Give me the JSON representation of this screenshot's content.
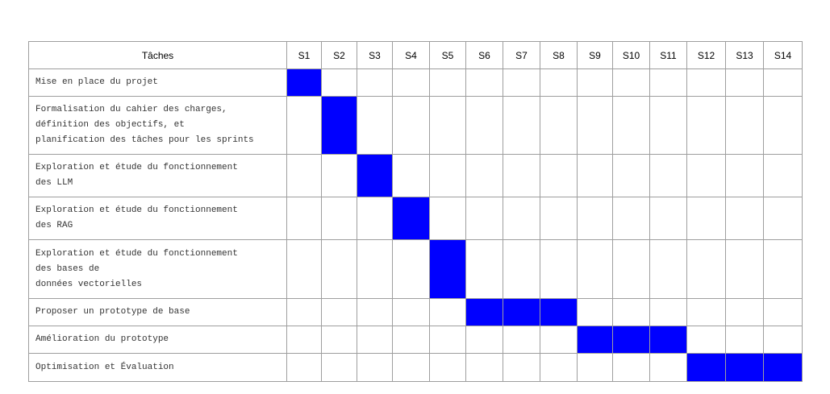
{
  "chart_data": {
    "type": "table",
    "header": {
      "task_column": "Tâches",
      "weeks": [
        "S1",
        "S2",
        "S3",
        "S4",
        "S5",
        "S6",
        "S7",
        "S8",
        "S9",
        "S10",
        "S11",
        "S12",
        "S13",
        "S14"
      ]
    },
    "tasks": [
      {
        "lines": [
          "Mise en place du projet"
        ],
        "weeks": [
          1
        ]
      },
      {
        "lines": [
          "Formalisation du cahier des charges,",
          "définition des objectifs, et",
          "planification des tâches pour les sprints"
        ],
        "weeks": [
          2
        ]
      },
      {
        "lines": [
          "Exploration et étude du fonctionnement",
          "des LLM"
        ],
        "weeks": [
          3
        ]
      },
      {
        "lines": [
          "Exploration et étude du fonctionnement",
          "des RAG"
        ],
        "weeks": [
          4
        ]
      },
      {
        "lines": [
          "Exploration et étude du fonctionnement",
          "des bases de",
          "données vectorielles"
        ],
        "weeks": [
          5
        ]
      },
      {
        "lines": [
          "Proposer un prototype de base"
        ],
        "weeks": [
          6,
          7,
          8
        ]
      },
      {
        "lines": [
          "Amélioration du prototype"
        ],
        "weeks": [
          9,
          10,
          11
        ]
      },
      {
        "lines": [
          "Optimisation et Évaluation"
        ],
        "weeks": [
          12,
          13,
          14
        ]
      }
    ],
    "colors": {
      "active": "#0000ff",
      "grid": "#9e9e9e"
    }
  }
}
